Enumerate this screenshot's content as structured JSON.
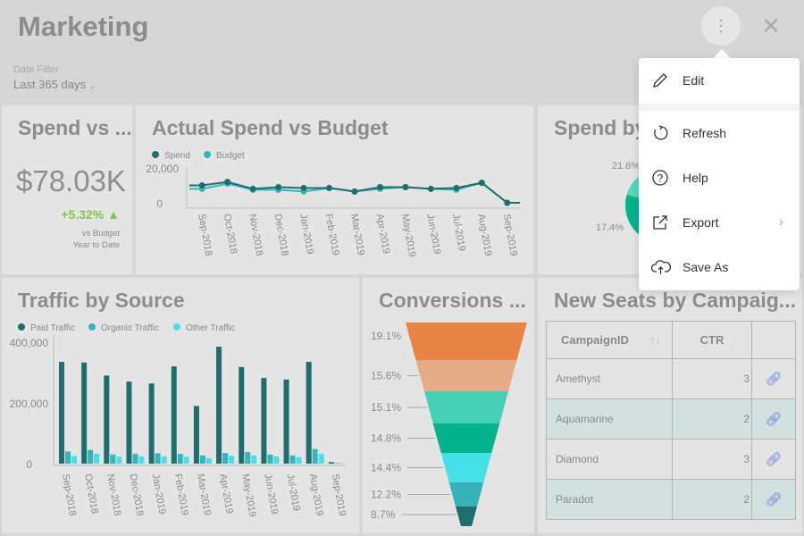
{
  "header": {
    "title": "Marketing",
    "more_icon": "more-vertical-icon",
    "close_icon": "close-icon",
    "date_filter_label": "Date Filter",
    "date_filter_value": "Last 365 days"
  },
  "kpi": {
    "title": "Spend vs ...",
    "value": "$78.03K",
    "change": "+5.32% ▲",
    "sub1": "vs Budget",
    "sub2": "Year to Date",
    "change_color": "#8bc34a"
  },
  "line_chart": {
    "title": "Actual Spend vs Budget"
  },
  "pie": {
    "title": "Spend by",
    "labels": [
      "21.6%",
      "17.4%"
    ]
  },
  "bar_chart": {
    "title": "Traffic by Source"
  },
  "funnel": {
    "title": "Conversions ..."
  },
  "table": {
    "title": "New Seats by Campaig...",
    "columns": [
      "CampaignID",
      "CTR",
      ""
    ],
    "rows": [
      {
        "id": "Amethyst",
        "ctr": "3"
      },
      {
        "id": "Aquamarine",
        "ctr": "2"
      },
      {
        "id": "Diamond",
        "ctr": "3"
      },
      {
        "id": "Paradot",
        "ctr": "2"
      }
    ]
  },
  "menu": {
    "items": [
      {
        "label": "Edit",
        "icon": "pencil-icon"
      },
      {
        "label": "Refresh",
        "icon": "refresh-icon"
      },
      {
        "label": "Help",
        "icon": "help-icon"
      },
      {
        "label": "Export",
        "icon": "export-icon"
      },
      {
        "label": "Save As",
        "icon": "cloud-upload-icon"
      }
    ]
  },
  "chart_data": [
    {
      "type": "line",
      "title": "Actual Spend vs Budget",
      "categories": [
        "Sep-2018",
        "Oct-2018",
        "Nov-2018",
        "Dec-2018",
        "Jan-2019",
        "Feb-2019",
        "Mar-2019",
        "Apr-2019",
        "May-2019",
        "Jun-2019",
        "Jul-2019",
        "Aug-2019",
        "Sep-2019"
      ],
      "yticks": [
        "0",
        "20,000"
      ],
      "ylim": [
        0,
        20000
      ],
      "legend": "top-left",
      "series": [
        {
          "name": "Spend",
          "color": "#1e6e6e",
          "values": [
            10500,
            12500,
            8500,
            9500,
            9000,
            9000,
            7000,
            9500,
            9500,
            8500,
            9000,
            12000,
            500
          ]
        },
        {
          "name": "Budget",
          "color": "#36b5b8",
          "values": [
            8500,
            11500,
            8000,
            8000,
            7000,
            9000,
            7000,
            8500,
            9500,
            8500,
            8000,
            12000,
            500
          ]
        }
      ]
    },
    {
      "type": "bar",
      "title": "Traffic by Source",
      "categories": [
        "Sep-2018",
        "Oct-2018",
        "Nov-2018",
        "Dec-2018",
        "Jan-2019",
        "Feb-2019",
        "Mar-2019",
        "Apr-2019",
        "May-2019",
        "Jun-2019",
        "Jul-2019",
        "Aug-2019",
        "Sep-2019"
      ],
      "yticks": [
        "0",
        "200,000",
        "400,000"
      ],
      "ylim": [
        0,
        400000
      ],
      "legend": "top-left",
      "series": [
        {
          "name": "Paid Traffic",
          "color": "#1e6e6e",
          "values": [
            335000,
            333000,
            290000,
            270000,
            264000,
            320000,
            190000,
            385000,
            318000,
            282000,
            277000,
            335000,
            5000
          ]
        },
        {
          "name": "Organic Traffic",
          "color": "#36b5b8",
          "values": [
            40000,
            45000,
            30000,
            32000,
            34000,
            32000,
            27000,
            35000,
            38000,
            30000,
            27000,
            48000,
            2000
          ]
        },
        {
          "name": "Other Traffic",
          "color": "#48e0e6",
          "values": [
            25000,
            33000,
            23000,
            24000,
            24000,
            23000,
            18000,
            26000,
            27000,
            24000,
            21000,
            33000,
            1000
          ]
        }
      ]
    },
    {
      "type": "funnel",
      "title": "Conversions ...",
      "labels": [
        "19.1%",
        "15.6%",
        "15.1%",
        "14.8%",
        "14.4%",
        "12.2%",
        "8.7%"
      ],
      "colors": [
        "#e88445",
        "#e6ab88",
        "#46d1b5",
        "#00b38a",
        "#45e0e6",
        "#36b3b8",
        "#1e6e6e"
      ]
    }
  ]
}
